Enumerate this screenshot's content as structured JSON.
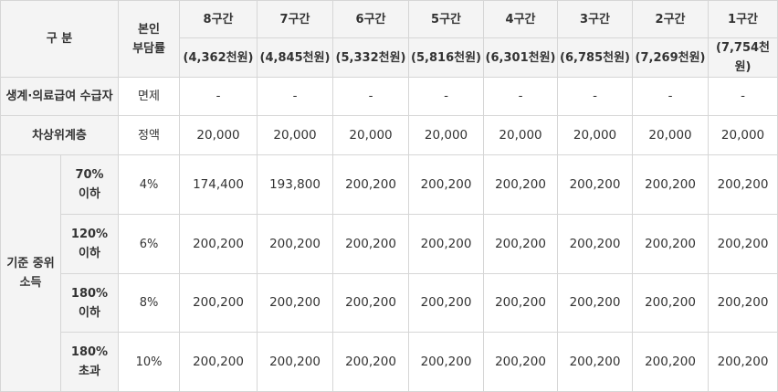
{
  "header": {
    "category": "구 분",
    "copay_rate": "본인\n부담률",
    "brackets": [
      {
        "label": "8구간",
        "amount": "(4,362천원)"
      },
      {
        "label": "7구간",
        "amount": "(4,845천원)"
      },
      {
        "label": "6구간",
        "amount": "(5,332천원)"
      },
      {
        "label": "5구간",
        "amount": "(5,816천원)"
      },
      {
        "label": "4구간",
        "amount": "(6,301천원)"
      },
      {
        "label": "3구간",
        "amount": "(6,785천원)"
      },
      {
        "label": "2구간",
        "amount": "(7,269천원)"
      },
      {
        "label": "1구간",
        "amount": "(7,754천원)"
      }
    ]
  },
  "rows": [
    {
      "label": "생계·의료급여 수급자",
      "rate": "면제",
      "values": [
        "-",
        "-",
        "-",
        "-",
        "-",
        "-",
        "-",
        "-"
      ]
    },
    {
      "label": "차상위계층",
      "rate": "정액",
      "values": [
        "20,000",
        "20,000",
        "20,000",
        "20,000",
        "20,000",
        "20,000",
        "20,000",
        "20,000"
      ]
    }
  ],
  "income_group": {
    "label": "기준 중위\n소득",
    "rows": [
      {
        "label": "70%\n이하",
        "rate": "4%",
        "values": [
          "174,400",
          "193,800",
          "200,200",
          "200,200",
          "200,200",
          "200,200",
          "200,200",
          "200,200"
        ]
      },
      {
        "label": "120%\n이하",
        "rate": "6%",
        "values": [
          "200,200",
          "200,200",
          "200,200",
          "200,200",
          "200,200",
          "200,200",
          "200,200",
          "200,200"
        ]
      },
      {
        "label": "180%\n이하",
        "rate": "8%",
        "values": [
          "200,200",
          "200,200",
          "200,200",
          "200,200",
          "200,200",
          "200,200",
          "200,200",
          "200,200"
        ]
      },
      {
        "label": "180%\n초과",
        "rate": "10%",
        "values": [
          "200,200",
          "200,200",
          "200,200",
          "200,200",
          "200,200",
          "200,200",
          "200,200",
          "200,200"
        ]
      }
    ]
  }
}
